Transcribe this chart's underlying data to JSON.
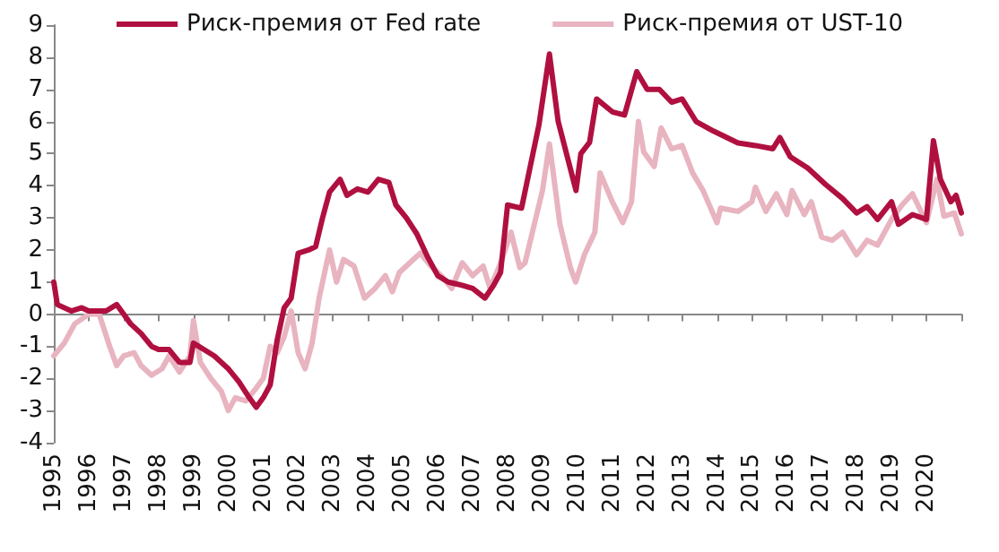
{
  "chart_data": {
    "type": "line",
    "legend": "top",
    "marker": "none",
    "line_style": "solid",
    "xlim": [
      1995,
      2021
    ],
    "xticks": [
      1995,
      1996,
      1997,
      1998,
      1999,
      2000,
      2001,
      2002,
      2003,
      2004,
      2005,
      2006,
      2007,
      2008,
      2009,
      2010,
      2011,
      2012,
      2013,
      2014,
      2015,
      2016,
      2017,
      2018,
      2019,
      2020,
      {
        "value": 2021,
        "label": null
      }
    ],
    "ylim": [
      -4,
      9
    ],
    "yticks": [
      -4,
      -3,
      -2,
      -1,
      0,
      1,
      2,
      3,
      4,
      5,
      6,
      7,
      8,
      9
    ],
    "series": [
      {
        "name": "Риск-премия от Fed rate",
        "color": "#b0103f",
        "x": [
          1995.0,
          1995.1,
          1995.5,
          1995.8,
          1996.0,
          1996.5,
          1996.8,
          1997.0,
          1997.2,
          1997.5,
          1997.8,
          1998.0,
          1998.3,
          1998.6,
          1998.9,
          1999.0,
          1999.3,
          1999.6,
          2000.0,
          2000.3,
          2000.6,
          2000.8,
          2001.0,
          2001.2,
          2001.4,
          2001.6,
          2001.8,
          2002.0,
          2002.3,
          2002.5,
          2002.7,
          2002.9,
          2003.2,
          2003.4,
          2003.7,
          2004.0,
          2004.3,
          2004.6,
          2004.8,
          2005.1,
          2005.4,
          2005.7,
          2006.0,
          2006.3,
          2006.7,
          2007.0,
          2007.35,
          2007.6,
          2007.8,
          2008.0,
          2008.4,
          2008.9,
          2009.2,
          2009.45,
          2009.96,
          2010.1,
          2010.35,
          2010.55,
          2011.0,
          2011.35,
          2011.7,
          2012.0,
          2012.35,
          2012.7,
          2013.0,
          2013.4,
          2013.9,
          2014.6,
          2015.1,
          2015.6,
          2015.8,
          2016.1,
          2016.6,
          2017.1,
          2017.6,
          2018.0,
          2018.3,
          2018.6,
          2019.0,
          2019.2,
          2019.6,
          2020.0,
          2020.2,
          2020.4,
          2020.7,
          2020.85,
          2021.0
        ],
        "values": [
          1.0,
          0.3,
          0.1,
          0.2,
          0.1,
          0.1,
          0.3,
          0.0,
          -0.3,
          -0.6,
          -1.0,
          -1.1,
          -1.1,
          -1.5,
          -1.5,
          -0.9,
          -1.1,
          -1.3,
          -1.7,
          -2.1,
          -2.6,
          -2.9,
          -2.6,
          -2.2,
          -0.8,
          0.2,
          0.5,
          1.9,
          2.0,
          2.1,
          3.0,
          3.8,
          4.2,
          3.7,
          3.9,
          3.8,
          4.2,
          4.1,
          3.4,
          3.0,
          2.5,
          1.8,
          1.2,
          1.0,
          0.9,
          0.8,
          0.5,
          0.9,
          1.3,
          3.4,
          3.3,
          5.9,
          8.1,
          6.0,
          3.85,
          5.0,
          5.35,
          6.7,
          6.3,
          6.2,
          7.55,
          7.0,
          7.0,
          6.6,
          6.7,
          6.0,
          5.7,
          5.33,
          5.25,
          5.15,
          5.5,
          4.9,
          4.55,
          4.05,
          3.6,
          3.15,
          3.35,
          2.95,
          3.5,
          2.8,
          3.1,
          2.95,
          5.4,
          4.2,
          3.5,
          3.7,
          3.15
        ]
      },
      {
        "name": "Риск-премия от UST-10",
        "color": "#e8b4c0",
        "x": [
          1995.0,
          1995.3,
          1995.6,
          1996.0,
          1996.3,
          1996.6,
          1996.8,
          1997.0,
          1997.3,
          1997.5,
          1997.8,
          1998.1,
          1998.3,
          1998.6,
          1998.9,
          1999.0,
          1999.2,
          1999.5,
          1999.8,
          2000.0,
          2000.2,
          2000.5,
          2000.8,
          2001.0,
          2001.2,
          2001.4,
          2001.6,
          2001.8,
          2002.0,
          2002.2,
          2002.4,
          2002.6,
          2002.9,
          2003.1,
          2003.3,
          2003.6,
          2003.9,
          2004.2,
          2004.5,
          2004.7,
          2004.9,
          2005.2,
          2005.5,
          2005.8,
          2006.1,
          2006.4,
          2006.7,
          2007.0,
          2007.3,
          2007.5,
          2007.8,
          2008.1,
          2008.35,
          2008.5,
          2009.0,
          2009.2,
          2009.5,
          2009.8,
          2009.95,
          2010.2,
          2010.5,
          2010.65,
          2011.0,
          2011.3,
          2011.55,
          2011.75,
          2011.9,
          2012.2,
          2012.4,
          2012.7,
          2013.0,
          2013.3,
          2013.6,
          2014.0,
          2014.1,
          2014.6,
          2015.0,
          2015.1,
          2015.4,
          2015.7,
          2016.0,
          2016.15,
          2016.5,
          2016.7,
          2017.0,
          2017.3,
          2017.6,
          2018.0,
          2018.3,
          2018.6,
          2019.0,
          2019.3,
          2019.6,
          2020.0,
          2020.3,
          2020.5,
          2020.8,
          2021.0
        ],
        "values": [
          -1.3,
          -0.9,
          -0.3,
          0.0,
          0.0,
          -1.0,
          -1.6,
          -1.3,
          -1.2,
          -1.6,
          -1.9,
          -1.7,
          -1.3,
          -1.8,
          -1.3,
          -0.2,
          -1.5,
          -2.0,
          -2.4,
          -3.0,
          -2.6,
          -2.7,
          -2.3,
          -2.0,
          -1.0,
          -1.2,
          -0.7,
          0.1,
          -1.2,
          -1.7,
          -0.9,
          0.5,
          2.0,
          1.0,
          1.7,
          1.5,
          0.5,
          0.8,
          1.2,
          0.7,
          1.3,
          1.6,
          1.9,
          1.5,
          1.2,
          0.8,
          1.6,
          1.2,
          1.5,
          0.8,
          1.6,
          2.55,
          1.45,
          1.6,
          3.85,
          5.3,
          2.8,
          1.45,
          1.0,
          1.85,
          2.55,
          4.4,
          3.5,
          2.85,
          3.5,
          6.0,
          5.05,
          4.6,
          5.8,
          5.15,
          5.25,
          4.4,
          3.85,
          2.85,
          3.3,
          3.2,
          3.5,
          3.95,
          3.2,
          3.75,
          3.1,
          3.85,
          3.1,
          3.5,
          2.4,
          2.3,
          2.55,
          1.85,
          2.3,
          2.15,
          2.95,
          3.4,
          3.75,
          2.85,
          4.2,
          3.05,
          3.15,
          2.5
        ]
      }
    ]
  }
}
